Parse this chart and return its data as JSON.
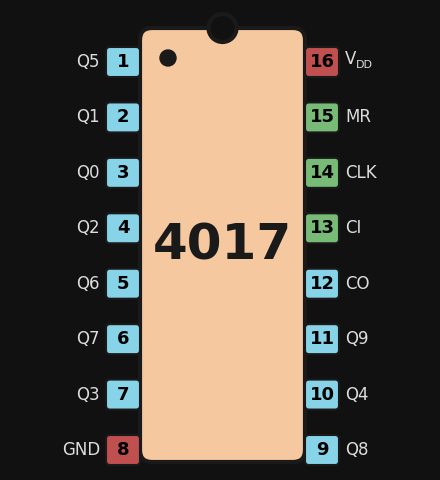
{
  "background_color": "#111111",
  "chip_color": "#f5c8a0",
  "chip_border_color": "#1a1a1a",
  "chip_label": "4017",
  "chip_label_fontsize": 36,
  "left_pins": [
    {
      "num": 1,
      "label": "Q5",
      "color": "#87d3e8"
    },
    {
      "num": 2,
      "label": "Q1",
      "color": "#87d3e8"
    },
    {
      "num": 3,
      "label": "Q0",
      "color": "#87d3e8"
    },
    {
      "num": 4,
      "label": "Q2",
      "color": "#87d3e8"
    },
    {
      "num": 5,
      "label": "Q6",
      "color": "#87d3e8"
    },
    {
      "num": 6,
      "label": "Q7",
      "color": "#87d3e8"
    },
    {
      "num": 7,
      "label": "Q3",
      "color": "#87d3e8"
    },
    {
      "num": 8,
      "label": "GND",
      "color": "#c05050"
    }
  ],
  "right_pins": [
    {
      "num": 16,
      "label": "VDD",
      "color": "#c05050"
    },
    {
      "num": 15,
      "label": "MR",
      "color": "#77bb77"
    },
    {
      "num": 14,
      "label": "CLK",
      "color": "#77bb77"
    },
    {
      "num": 13,
      "label": "CI",
      "color": "#77bb77"
    },
    {
      "num": 12,
      "label": "CO",
      "color": "#87d3e8"
    },
    {
      "num": 11,
      "label": "Q9",
      "color": "#87d3e8"
    },
    {
      "num": 10,
      "label": "Q4",
      "color": "#87d3e8"
    },
    {
      "num": 9,
      "label": "Q8",
      "color": "#87d3e8"
    }
  ],
  "text_color": "#dddddd",
  "pin_text_color": "#000000"
}
